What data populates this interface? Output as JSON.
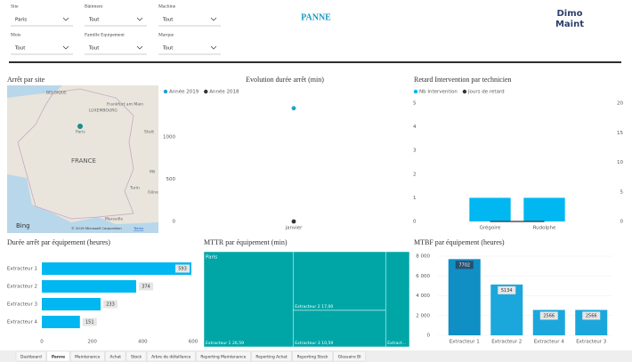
{
  "header": {
    "title": "PANNE",
    "logo": [
      "Dimo",
      "Maint"
    ]
  },
  "filters": [
    {
      "label": "Site",
      "value": "Paris"
    },
    {
      "label": "Bâtiment",
      "value": "Tout"
    },
    {
      "label": "Machine",
      "value": "Tout"
    },
    {
      "label": "Mois",
      "value": "Tout"
    },
    {
      "label": "Famille Equipement",
      "value": "Tout"
    },
    {
      "label": "Marque",
      "value": "Tout"
    }
  ],
  "map": {
    "title": "Arrêt par site",
    "labels": [
      "BELGIQUE",
      "Frankfurt am Main",
      "LUXEMBOURG",
      "Paris",
      "Stutt",
      "FRANCE",
      "Turin",
      "Gêne",
      "Mil",
      "Marseille"
    ],
    "brand": "Bing",
    "credit": "© 2019 Microsoft Corporation",
    "terms": "Terms"
  },
  "chart_data": [
    {
      "type": "line",
      "title": "Evolution durée arrêt (min)",
      "categories": [
        "janvier"
      ],
      "series": [
        {
          "name": "Année 2019",
          "color": "#1aa3d6",
          "values": [
            1340
          ]
        },
        {
          "name": "Année 2018",
          "color": "#333333",
          "values": [
            0
          ]
        }
      ],
      "ylim": [
        0,
        1400
      ],
      "yticks": [
        0,
        500,
        1000
      ]
    },
    {
      "type": "combo",
      "title": "Retard Intervention par technicien",
      "categories": [
        "Grégoire",
        "Rudolphe"
      ],
      "series": [
        {
          "name": "Nb Intervention",
          "color": "#00b7f1",
          "values": [
            1,
            1
          ]
        },
        {
          "name": "Jours de retard",
          "color": "#333333",
          "values": [
            0,
            0
          ],
          "axis": "y2"
        }
      ],
      "ylim": [
        0,
        5
      ],
      "yticks": [
        0,
        1,
        2,
        3,
        4,
        5
      ],
      "y2lim": [
        0,
        20
      ],
      "y2ticks": [
        0,
        5,
        10,
        15,
        20
      ]
    },
    {
      "type": "hbar",
      "title": "Durée arrêt par équipement (heures)",
      "categories": [
        "Extracteur 1",
        "Extracteur 2",
        "Extracteur 3",
        "Extracteur 4"
      ],
      "values": [
        593,
        374,
        233,
        151
      ],
      "color": "#00b7f1",
      "xlim": [
        0,
        600
      ],
      "xticks": [
        0,
        200,
        400,
        600
      ]
    },
    {
      "type": "treemap",
      "title": "MTTR par équipement (min)",
      "group": "Paris",
      "labels": [
        "Extracteur 1",
        "Extracteur 2",
        "Extracteur 3",
        "Extract..."
      ],
      "values": [
        26.59,
        17.0,
        10.59,
        7.1
      ],
      "value_labels": [
        "26,59",
        "17,00",
        "10,59",
        null
      ],
      "color": "#00a6a6"
    },
    {
      "type": "bar",
      "title": "MTBF par équipement (heures)",
      "categories": [
        "Extracteur 1",
        "Extracteur 2",
        "Extracteur 4",
        "Extracteur 3"
      ],
      "values": [
        7702,
        5134,
        2566,
        2566
      ],
      "colors": [
        "#0f8fc4",
        "#1ba7dc",
        "#1ba7dc",
        "#1ba7dc"
      ],
      "ylim": [
        0,
        8000
      ],
      "yticks": [
        0,
        {
          "value": 2000,
          "label": "2 000"
        },
        {
          "value": 4000,
          "label": "4 000"
        },
        {
          "value": 6000,
          "label": "6 000"
        },
        {
          "value": 8000,
          "label": "8 000"
        }
      ]
    }
  ],
  "tabs": [
    "Dashboard",
    "Panne",
    "Maintenance",
    "Achat",
    "Stock",
    "Arbre de défaillance",
    "Reporting Maintenance",
    "Reporting Achat",
    "Reporting Stock",
    "Glossaire BI"
  ],
  "active_tab": "Panne"
}
